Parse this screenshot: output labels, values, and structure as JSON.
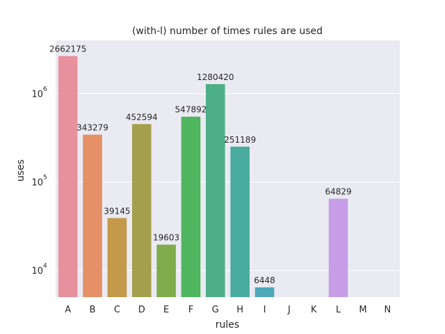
{
  "chart_data": {
    "type": "bar",
    "title": "(with-l) number of times rules are used",
    "xlabel": "rules",
    "ylabel": "uses",
    "yscale": "log",
    "ylim": [
      5000,
      4000000
    ],
    "grid": true,
    "categories": [
      "A",
      "B",
      "C",
      "D",
      "E",
      "F",
      "G",
      "H",
      "I",
      "J",
      "K",
      "L",
      "M",
      "N"
    ],
    "values": [
      2662175,
      343279,
      39145,
      452594,
      19603,
      547892,
      1280420,
      251189,
      6448,
      null,
      null,
      64829,
      null,
      null
    ],
    "data_labels": [
      "2662175",
      "343279",
      "39145",
      "452594",
      "19603",
      "547892",
      "1280420",
      "251189",
      "6448",
      "",
      "",
      "64829",
      "",
      ""
    ],
    "colors": [
      "#e8919e",
      "#e59066",
      "#c49a4a",
      "#a39f4c",
      "#80ac4b",
      "#4fb55f",
      "#4caf86",
      "#4aab9f",
      "#4da8b7",
      "#62a8d9",
      "#8fa7e8",
      "#c79de8",
      "#e58fd6",
      "#e991bb"
    ],
    "yticks": [
      {
        "value": 10000,
        "base": "10",
        "exp": "4"
      },
      {
        "value": 100000,
        "base": "10",
        "exp": "5"
      },
      {
        "value": 1000000,
        "base": "10",
        "exp": "6"
      }
    ],
    "plot_background": "#eaeaf2",
    "grid_color": "#ffffff"
  }
}
